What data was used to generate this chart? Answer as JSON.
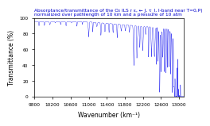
{
  "title_line1": "Absorptance/transmittance of the O₂ ILS r ε, ← J, τ_l, l-band near T=0,P)",
  "title_line2": "normalized over pathlength of 10 km and a pressure of 10 atm",
  "xlabel": "Wavenumber (km⁻¹)",
  "ylabel": "Transmittance (%)",
  "xmin": 9800,
  "xmax": 13100,
  "ymin": 0,
  "ymax": 100,
  "yticks": [
    0,
    20,
    40,
    60,
    80,
    100
  ],
  "xticks": [
    9800,
    10200,
    10600,
    11000,
    11400,
    11800,
    12200,
    12600,
    13000
  ],
  "line_color": "#0000ee",
  "background_color": "#ffffff",
  "title_color": "#0000cc",
  "axis_color": "#000000",
  "title_fontsize": 4.2,
  "label_fontsize": 5.5,
  "tick_fontsize": 4.2
}
